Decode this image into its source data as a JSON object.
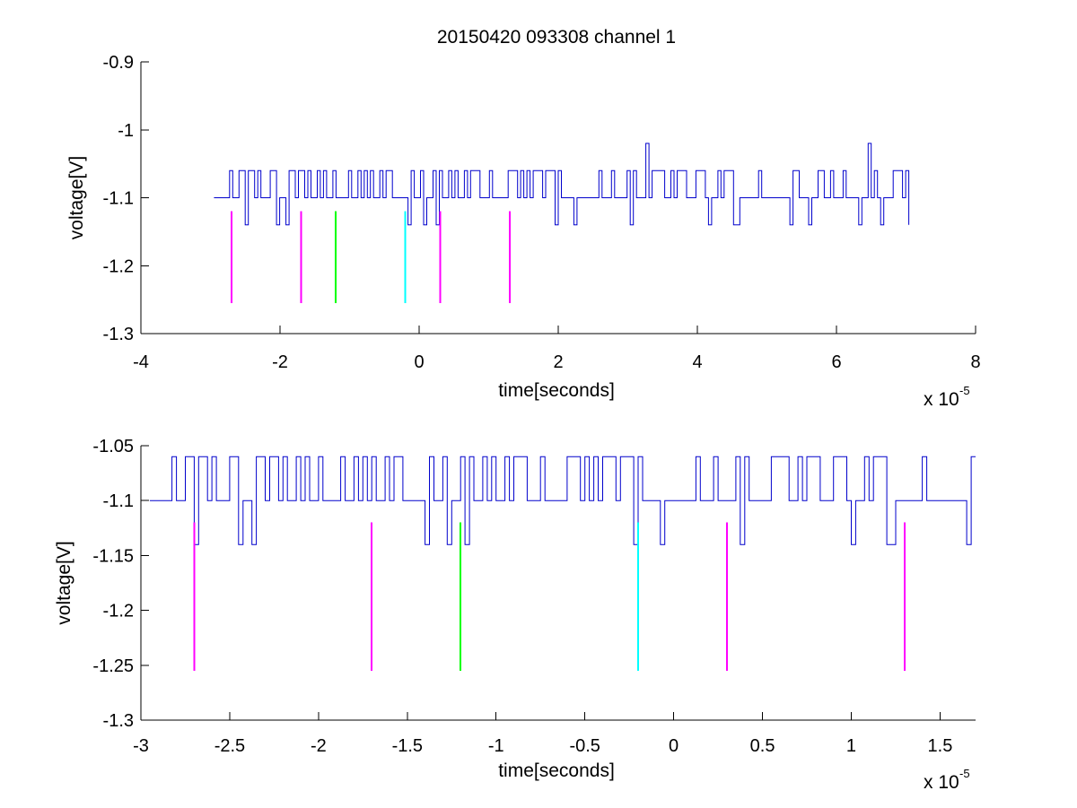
{
  "figure_title": "20150420 093308 channel 1",
  "chart_data": [
    {
      "type": "line",
      "title": "20150420 093308 channel 1",
      "xlabel": "time[seconds]",
      "ylabel": "voltage[V]",
      "x_exponent_label": "x 10",
      "x_exponent": "-5",
      "xlim": [
        -4,
        8
      ],
      "ylim": [
        -1.3,
        -0.9
      ],
      "xticks": [
        -4,
        -2,
        0,
        2,
        4,
        6,
        8
      ],
      "xtick_labels": [
        "-4",
        "-2",
        "0",
        "2",
        "4",
        "6",
        "8"
      ],
      "yticks": [
        -1.3,
        -1.2,
        -1.1,
        -1,
        -0.9
      ],
      "ytick_labels": [
        "-1.3",
        "-1.2",
        "-1.1",
        "-1",
        "-0.9"
      ],
      "grid": false,
      "series": [
        {
          "color": "#0000cc",
          "x_range": [
            -2.95,
            7.05
          ],
          "baseline": -1.1,
          "levels": [
            -1.06,
            -1.1,
            -1.14
          ],
          "spikes": [
            {
              "x": 3.25,
              "y": -1.02
            },
            {
              "x": 6.45,
              "y": -1.02
            }
          ]
        }
      ],
      "markers": [
        {
          "x": -2.7,
          "y_top": -1.12,
          "y_bottom": -1.255,
          "color": "#ff00ff"
        },
        {
          "x": -1.7,
          "y_top": -1.12,
          "y_bottom": -1.255,
          "color": "#ff00ff"
        },
        {
          "x": -1.2,
          "y_top": -1.12,
          "y_bottom": -1.255,
          "color": "#00ff00"
        },
        {
          "x": -0.2,
          "y_top": -1.12,
          "y_bottom": -1.255,
          "color": "#00ffff"
        },
        {
          "x": 0.3,
          "y_top": -1.12,
          "y_bottom": -1.255,
          "color": "#ff00ff"
        },
        {
          "x": 1.3,
          "y_top": -1.12,
          "y_bottom": -1.255,
          "color": "#ff00ff"
        }
      ]
    },
    {
      "type": "line",
      "title": "",
      "xlabel": "time[seconds]",
      "ylabel": "voltage[V]",
      "x_exponent_label": "x 10",
      "x_exponent": "-5",
      "xlim": [
        -3,
        1.7
      ],
      "ylim": [
        -1.3,
        -1.05
      ],
      "xticks": [
        -3,
        -2.5,
        -2,
        -1.5,
        -1,
        -0.5,
        0,
        0.5,
        1,
        1.5
      ],
      "xtick_labels": [
        "-3",
        "-2.5",
        "-2",
        "-1.5",
        "-1",
        "-0.5",
        "0",
        "0.5",
        "1",
        "1.5"
      ],
      "yticks": [
        -1.3,
        -1.25,
        -1.2,
        -1.15,
        -1.1,
        -1.05
      ],
      "ytick_labels": [
        "-1.3",
        "-1.25",
        "-1.2",
        "-1.15",
        "-1.1",
        "-1.05"
      ],
      "grid": false,
      "series": [
        {
          "color": "#0000cc",
          "x_range": [
            -2.95,
            1.7
          ],
          "baseline": -1.1,
          "levels": [
            -1.06,
            -1.1,
            -1.14
          ],
          "spikes": []
        }
      ],
      "markers": [
        {
          "x": -2.7,
          "y_top": -1.12,
          "y_bottom": -1.255,
          "color": "#ff00ff"
        },
        {
          "x": -1.7,
          "y_top": -1.12,
          "y_bottom": -1.255,
          "color": "#ff00ff"
        },
        {
          "x": -1.2,
          "y_top": -1.12,
          "y_bottom": -1.255,
          "color": "#00ff00"
        },
        {
          "x": -0.2,
          "y_top": -1.12,
          "y_bottom": -1.255,
          "color": "#00ffff"
        },
        {
          "x": 0.3,
          "y_top": -1.12,
          "y_bottom": -1.255,
          "color": "#ff00ff"
        },
        {
          "x": 1.3,
          "y_top": -1.12,
          "y_bottom": -1.255,
          "color": "#ff00ff"
        }
      ]
    }
  ]
}
